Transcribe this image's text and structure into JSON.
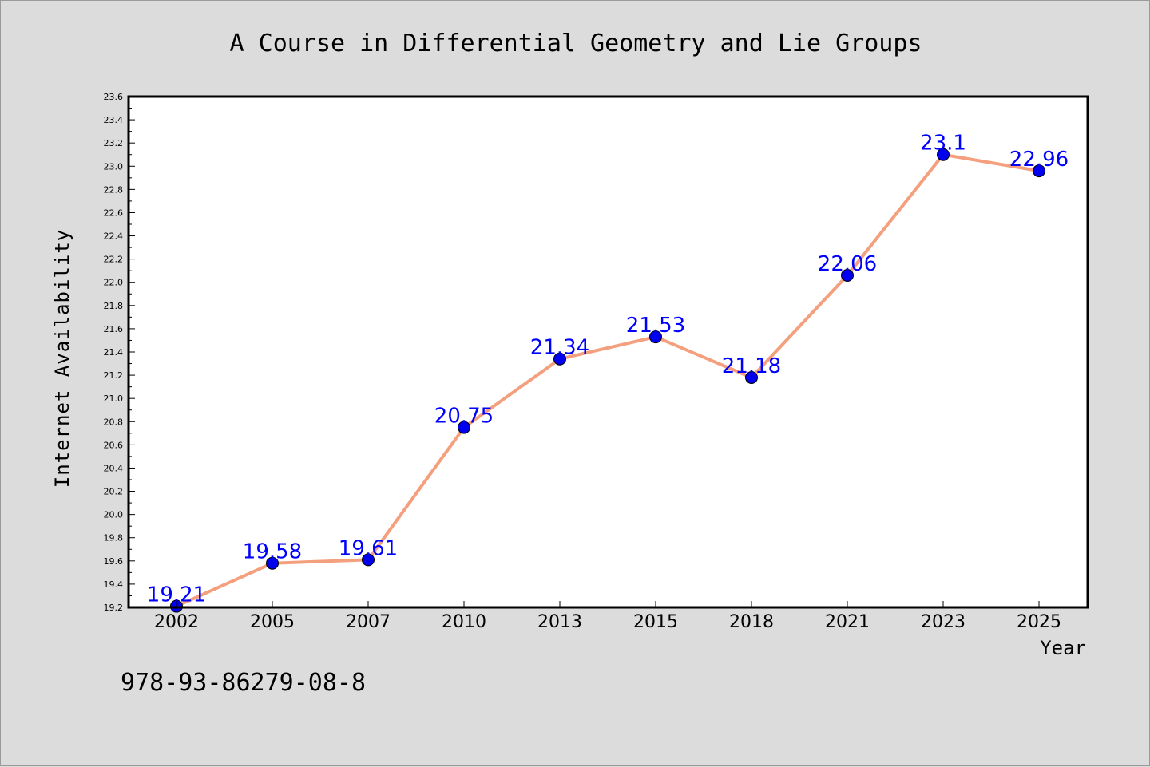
{
  "chart_data": {
    "type": "line",
    "title": "A Course in Differential Geometry and Lie Groups",
    "xlabel": "Year",
    "ylabel": "Internet Availability",
    "categories": [
      "2002",
      "2005",
      "2007",
      "2010",
      "2013",
      "2015",
      "2018",
      "2021",
      "2023",
      "2025"
    ],
    "series": [
      {
        "values": [
          19.21,
          19.58,
          19.61,
          20.75,
          21.34,
          21.53,
          21.18,
          22.06,
          23.1,
          22.96
        ],
        "data_labels": [
          "19.21",
          "19.58",
          "19.61",
          "20.75",
          "21.34",
          "21.53",
          "21.18",
          "22.06",
          "23.1",
          "22.96"
        ],
        "line_color": "#f4a07e",
        "marker_color": "#0000ee"
      }
    ],
    "ylim": [
      19.2,
      23.6
    ],
    "yticks": [
      "19.2",
      "19.4",
      "19.6",
      "19.8",
      "20.0",
      "20.2",
      "20.4",
      "20.6",
      "20.8",
      "21.0",
      "21.2",
      "21.4",
      "21.6",
      "21.8",
      "22.0",
      "22.2",
      "22.4",
      "22.6",
      "22.8",
      "23.0",
      "23.2",
      "23.4",
      "23.6"
    ],
    "grid": false,
    "legend": "none"
  },
  "footnote": "978-93-86279-08-8",
  "colors": {
    "background": "#dcdcdc",
    "plot_background": "#ffffff",
    "label_color": "#0000ff"
  }
}
